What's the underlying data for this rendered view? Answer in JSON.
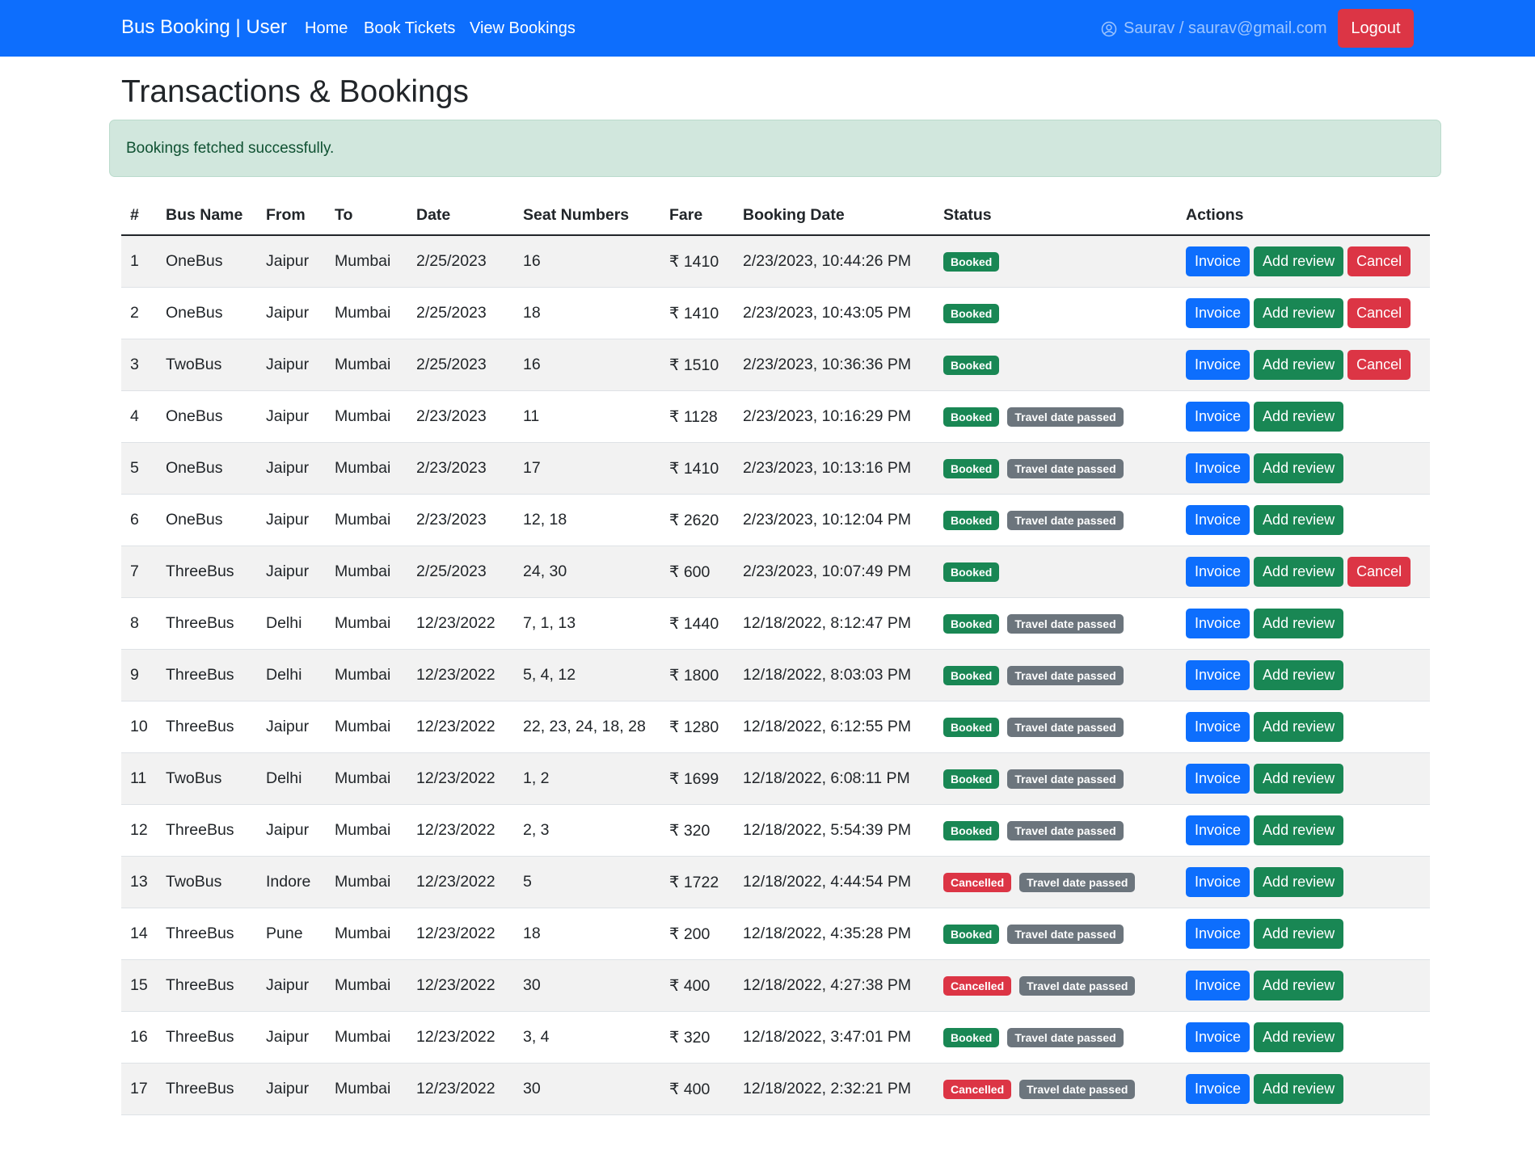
{
  "navbar": {
    "brand": "Bus Booking | User",
    "links": [
      "Home",
      "Book Tickets",
      "View Bookings"
    ],
    "user": "Saurav / saurav@gmail.com",
    "logout": "Logout"
  },
  "page_title": "Transactions & Bookings",
  "alert": "Bookings fetched successfully.",
  "table": {
    "headers": [
      "#",
      "Bus Name",
      "From",
      "To",
      "Date",
      "Seat Numbers",
      "Fare",
      "Booking Date",
      "Status",
      "Actions"
    ],
    "rows": [
      {
        "cells": [
          "1",
          "OneBus",
          "Jaipur",
          "Mumbai",
          "2/25/2023",
          "16",
          "₹ 1410",
          "2/23/2023, 10:44:26 PM"
        ],
        "status": [
          {
            "label": "Booked",
            "variant": "success"
          }
        ],
        "actions": [
          {
            "label": "Invoice",
            "variant": "primary"
          },
          {
            "label": "Add review",
            "variant": "success"
          },
          {
            "label": "Cancel",
            "variant": "danger"
          }
        ]
      },
      {
        "cells": [
          "2",
          "OneBus",
          "Jaipur",
          "Mumbai",
          "2/25/2023",
          "18",
          "₹ 1410",
          "2/23/2023, 10:43:05 PM"
        ],
        "status": [
          {
            "label": "Booked",
            "variant": "success"
          }
        ],
        "actions": [
          {
            "label": "Invoice",
            "variant": "primary"
          },
          {
            "label": "Add review",
            "variant": "success"
          },
          {
            "label": "Cancel",
            "variant": "danger"
          }
        ]
      },
      {
        "cells": [
          "3",
          "TwoBus",
          "Jaipur",
          "Mumbai",
          "2/25/2023",
          "16",
          "₹ 1510",
          "2/23/2023, 10:36:36 PM"
        ],
        "status": [
          {
            "label": "Booked",
            "variant": "success"
          }
        ],
        "actions": [
          {
            "label": "Invoice",
            "variant": "primary"
          },
          {
            "label": "Add review",
            "variant": "success"
          },
          {
            "label": "Cancel",
            "variant": "danger"
          }
        ]
      },
      {
        "cells": [
          "4",
          "OneBus",
          "Jaipur",
          "Mumbai",
          "2/23/2023",
          "11",
          "₹ 1128",
          "2/23/2023, 10:16:29 PM"
        ],
        "status": [
          {
            "label": "Booked",
            "variant": "success"
          },
          {
            "label": "Travel date passed",
            "variant": "secondary"
          }
        ],
        "actions": [
          {
            "label": "Invoice",
            "variant": "primary"
          },
          {
            "label": "Add review",
            "variant": "success"
          }
        ]
      },
      {
        "cells": [
          "5",
          "OneBus",
          "Jaipur",
          "Mumbai",
          "2/23/2023",
          "17",
          "₹ 1410",
          "2/23/2023, 10:13:16 PM"
        ],
        "status": [
          {
            "label": "Booked",
            "variant": "success"
          },
          {
            "label": "Travel date passed",
            "variant": "secondary"
          }
        ],
        "actions": [
          {
            "label": "Invoice",
            "variant": "primary"
          },
          {
            "label": "Add review",
            "variant": "success"
          }
        ]
      },
      {
        "cells": [
          "6",
          "OneBus",
          "Jaipur",
          "Mumbai",
          "2/23/2023",
          "12, 18",
          "₹ 2620",
          "2/23/2023, 10:12:04 PM"
        ],
        "status": [
          {
            "label": "Booked",
            "variant": "success"
          },
          {
            "label": "Travel date passed",
            "variant": "secondary"
          }
        ],
        "actions": [
          {
            "label": "Invoice",
            "variant": "primary"
          },
          {
            "label": "Add review",
            "variant": "success"
          }
        ]
      },
      {
        "cells": [
          "7",
          "ThreeBus",
          "Jaipur",
          "Mumbai",
          "2/25/2023",
          "24, 30",
          "₹ 600",
          "2/23/2023, 10:07:49 PM"
        ],
        "status": [
          {
            "label": "Booked",
            "variant": "success"
          }
        ],
        "actions": [
          {
            "label": "Invoice",
            "variant": "primary"
          },
          {
            "label": "Add review",
            "variant": "success"
          },
          {
            "label": "Cancel",
            "variant": "danger"
          }
        ]
      },
      {
        "cells": [
          "8",
          "ThreeBus",
          "Delhi",
          "Mumbai",
          "12/23/2022",
          "7, 1, 13",
          "₹ 1440",
          "12/18/2022, 8:12:47 PM"
        ],
        "status": [
          {
            "label": "Booked",
            "variant": "success"
          },
          {
            "label": "Travel date passed",
            "variant": "secondary"
          }
        ],
        "actions": [
          {
            "label": "Invoice",
            "variant": "primary"
          },
          {
            "label": "Add review",
            "variant": "success"
          }
        ]
      },
      {
        "cells": [
          "9",
          "ThreeBus",
          "Delhi",
          "Mumbai",
          "12/23/2022",
          "5, 4, 12",
          "₹ 1800",
          "12/18/2022, 8:03:03 PM"
        ],
        "status": [
          {
            "label": "Booked",
            "variant": "success"
          },
          {
            "label": "Travel date passed",
            "variant": "secondary"
          }
        ],
        "actions": [
          {
            "label": "Invoice",
            "variant": "primary"
          },
          {
            "label": "Add review",
            "variant": "success"
          }
        ]
      },
      {
        "cells": [
          "10",
          "ThreeBus",
          "Jaipur",
          "Mumbai",
          "12/23/2022",
          "22, 23, 24, 18, 28",
          "₹ 1280",
          "12/18/2022, 6:12:55 PM"
        ],
        "status": [
          {
            "label": "Booked",
            "variant": "success"
          },
          {
            "label": "Travel date passed",
            "variant": "secondary"
          }
        ],
        "actions": [
          {
            "label": "Invoice",
            "variant": "primary"
          },
          {
            "label": "Add review",
            "variant": "success"
          }
        ]
      },
      {
        "cells": [
          "11",
          "TwoBus",
          "Delhi",
          "Mumbai",
          "12/23/2022",
          "1, 2",
          "₹ 1699",
          "12/18/2022, 6:08:11 PM"
        ],
        "status": [
          {
            "label": "Booked",
            "variant": "success"
          },
          {
            "label": "Travel date passed",
            "variant": "secondary"
          }
        ],
        "actions": [
          {
            "label": "Invoice",
            "variant": "primary"
          },
          {
            "label": "Add review",
            "variant": "success"
          }
        ]
      },
      {
        "cells": [
          "12",
          "ThreeBus",
          "Jaipur",
          "Mumbai",
          "12/23/2022",
          "2, 3",
          "₹ 320",
          "12/18/2022, 5:54:39 PM"
        ],
        "status": [
          {
            "label": "Booked",
            "variant": "success"
          },
          {
            "label": "Travel date passed",
            "variant": "secondary"
          }
        ],
        "actions": [
          {
            "label": "Invoice",
            "variant": "primary"
          },
          {
            "label": "Add review",
            "variant": "success"
          }
        ]
      },
      {
        "cells": [
          "13",
          "TwoBus",
          "Indore",
          "Mumbai",
          "12/23/2022",
          "5",
          "₹ 1722",
          "12/18/2022, 4:44:54 PM"
        ],
        "status": [
          {
            "label": "Cancelled",
            "variant": "danger"
          },
          {
            "label": "Travel date passed",
            "variant": "secondary"
          }
        ],
        "actions": [
          {
            "label": "Invoice",
            "variant": "primary"
          },
          {
            "label": "Add review",
            "variant": "success"
          }
        ]
      },
      {
        "cells": [
          "14",
          "ThreeBus",
          "Pune",
          "Mumbai",
          "12/23/2022",
          "18",
          "₹ 200",
          "12/18/2022, 4:35:28 PM"
        ],
        "status": [
          {
            "label": "Booked",
            "variant": "success"
          },
          {
            "label": "Travel date passed",
            "variant": "secondary"
          }
        ],
        "actions": [
          {
            "label": "Invoice",
            "variant": "primary"
          },
          {
            "label": "Add review",
            "variant": "success"
          }
        ]
      },
      {
        "cells": [
          "15",
          "ThreeBus",
          "Jaipur",
          "Mumbai",
          "12/23/2022",
          "30",
          "₹ 400",
          "12/18/2022, 4:27:38 PM"
        ],
        "status": [
          {
            "label": "Cancelled",
            "variant": "danger"
          },
          {
            "label": "Travel date passed",
            "variant": "secondary"
          }
        ],
        "actions": [
          {
            "label": "Invoice",
            "variant": "primary"
          },
          {
            "label": "Add review",
            "variant": "success"
          }
        ]
      },
      {
        "cells": [
          "16",
          "ThreeBus",
          "Jaipur",
          "Mumbai",
          "12/23/2022",
          "3, 4",
          "₹ 320",
          "12/18/2022, 3:47:01 PM"
        ],
        "status": [
          {
            "label": "Booked",
            "variant": "success"
          },
          {
            "label": "Travel date passed",
            "variant": "secondary"
          }
        ],
        "actions": [
          {
            "label": "Invoice",
            "variant": "primary"
          },
          {
            "label": "Add review",
            "variant": "success"
          }
        ]
      },
      {
        "cells": [
          "17",
          "ThreeBus",
          "Jaipur",
          "Mumbai",
          "12/23/2022",
          "30",
          "₹ 400",
          "12/18/2022, 2:32:21 PM"
        ],
        "status": [
          {
            "label": "Cancelled",
            "variant": "danger"
          },
          {
            "label": "Travel date passed",
            "variant": "secondary"
          }
        ],
        "actions": [
          {
            "label": "Invoice",
            "variant": "primary"
          },
          {
            "label": "Add review",
            "variant": "success"
          }
        ]
      }
    ]
  }
}
